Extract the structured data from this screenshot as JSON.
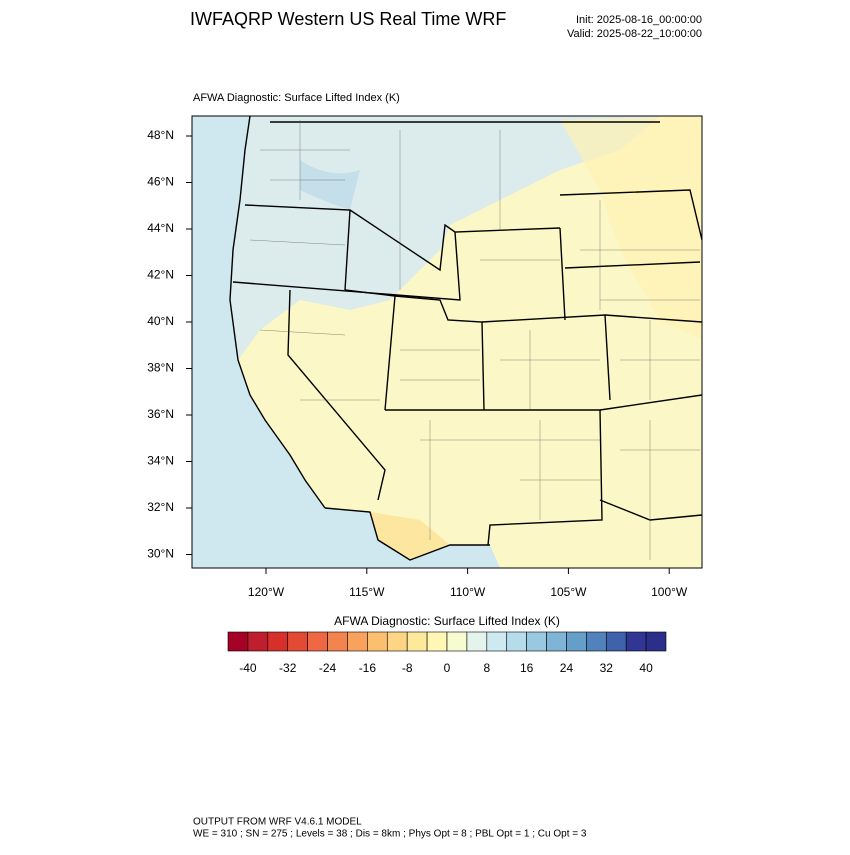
{
  "header": {
    "title": "IWFAQRP Western US Real Time WRF",
    "init": "Init: 2025-08-16_00:00:00",
    "valid": "Valid: 2025-08-22_10:00:00"
  },
  "map": {
    "title": "AFWA Diagnostic: Surface Lifted Index   (K)",
    "lat_labels": [
      "48°N",
      "46°N",
      "44°N",
      "42°N",
      "40°N",
      "38°N",
      "36°N",
      "34°N",
      "32°N",
      "30°N"
    ],
    "lon_labels": [
      "120°W",
      "115°W",
      "110°W",
      "105°W",
      "100°W"
    ]
  },
  "colorbar": {
    "title": "AFWA Diagnostic: Surface Lifted Index  (K)",
    "ticks": [
      -40,
      -32,
      -24,
      -16,
      -8,
      0,
      8,
      16,
      24,
      32,
      40
    ],
    "colors": [
      "#a50026",
      "#be1e2d",
      "#d7302a",
      "#e34a33",
      "#f06744",
      "#f4844e",
      "#f9a25e",
      "#fcbf70",
      "#fdd585",
      "#fee89a",
      "#fff7b3",
      "#f6fbd0",
      "#e4f4ec",
      "#cdeaf1",
      "#b4dcea",
      "#98c9e0",
      "#7eb5d6",
      "#659ec8",
      "#5082bb",
      "#3e63ab",
      "#313695",
      "#2b2f8a"
    ]
  },
  "footer": {
    "line1": "OUTPUT FROM WRF V4.6.1 MODEL",
    "line2": "WE = 310 ; SN = 275 ; Levels = 38 ; Dis = 8km ; Phys Opt = 8 ; PBL Opt = 1 ; Cu Opt = 3"
  }
}
